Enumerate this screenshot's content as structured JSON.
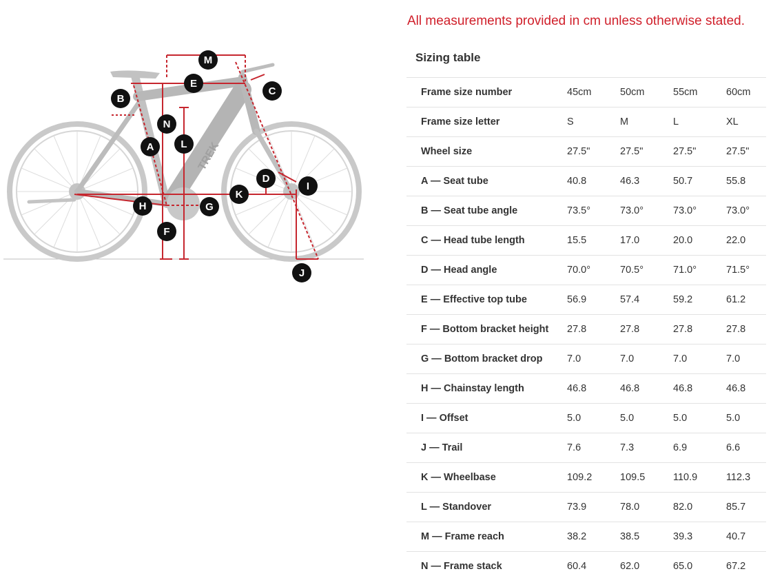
{
  "notice": "All measurements provided in cm unless otherwise stated.",
  "table_title": "Sizing table",
  "diagram": {
    "labels": [
      "M",
      "E",
      "C",
      "B",
      "N",
      "L",
      "A",
      "D",
      "I",
      "K",
      "H",
      "G",
      "F",
      "J"
    ],
    "frame_text": "TREK"
  },
  "rows": [
    {
      "label": "Frame size number",
      "values": [
        "45cm",
        "50cm",
        "55cm",
        "60cm"
      ]
    },
    {
      "label": "Frame size letter",
      "values": [
        "S",
        "M",
        "L",
        "XL"
      ]
    },
    {
      "label": "Wheel size",
      "values": [
        "27.5\"",
        "27.5\"",
        "27.5\"",
        "27.5\""
      ]
    },
    {
      "label": "A — Seat tube",
      "values": [
        "40.8",
        "46.3",
        "50.7",
        "55.8"
      ]
    },
    {
      "label": "B — Seat tube angle",
      "values": [
        "73.5°",
        "73.0°",
        "73.0°",
        "73.0°"
      ]
    },
    {
      "label": "C — Head tube length",
      "values": [
        "15.5",
        "17.0",
        "20.0",
        "22.0"
      ]
    },
    {
      "label": "D — Head angle",
      "values": [
        "70.0°",
        "70.5°",
        "71.0°",
        "71.5°"
      ]
    },
    {
      "label": "E — Effective top tube",
      "values": [
        "56.9",
        "57.4",
        "59.2",
        "61.2"
      ]
    },
    {
      "label": "F — Bottom bracket height",
      "values": [
        "27.8",
        "27.8",
        "27.8",
        "27.8"
      ]
    },
    {
      "label": "G — Bottom bracket drop",
      "values": [
        "7.0",
        "7.0",
        "7.0",
        "7.0"
      ]
    },
    {
      "label": "H — Chainstay length",
      "values": [
        "46.8",
        "46.8",
        "46.8",
        "46.8"
      ]
    },
    {
      "label": "I — Offset",
      "values": [
        "5.0",
        "5.0",
        "5.0",
        "5.0"
      ]
    },
    {
      "label": "J — Trail",
      "values": [
        "7.6",
        "7.3",
        "6.9",
        "6.6"
      ]
    },
    {
      "label": "K — Wheelbase",
      "values": [
        "109.2",
        "109.5",
        "110.9",
        "112.3"
      ]
    },
    {
      "label": "L — Standover",
      "values": [
        "73.9",
        "78.0",
        "82.0",
        "85.7"
      ]
    },
    {
      "label": "M — Frame reach",
      "values": [
        "38.2",
        "38.5",
        "39.3",
        "40.7"
      ]
    },
    {
      "label": "N — Frame stack",
      "values": [
        "60.4",
        "62.0",
        "65.0",
        "67.2"
      ]
    }
  ]
}
